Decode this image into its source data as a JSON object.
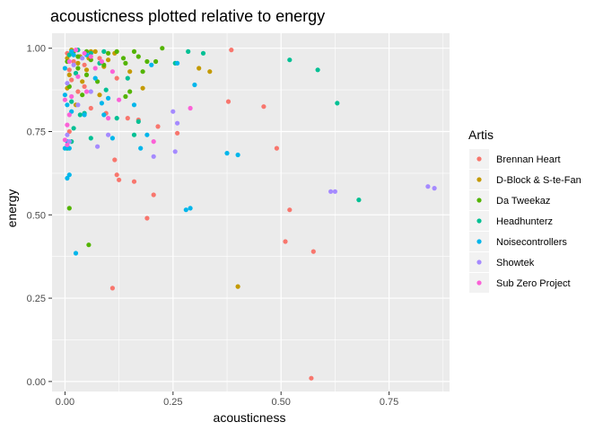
{
  "chart_data": {
    "type": "scatter",
    "title": "acousticness plotted relative to energy",
    "xlabel": "acousticness",
    "ylabel": "energy",
    "xlim": [
      -0.03,
      0.89
    ],
    "ylim": [
      -0.03,
      1.045
    ],
    "x_ticks": [
      0.0,
      0.25,
      0.5,
      0.75
    ],
    "x_tick_labels": [
      "0.00",
      "0.25",
      "0.50",
      "0.75"
    ],
    "y_ticks": [
      0.0,
      0.25,
      0.5,
      0.75,
      1.0
    ],
    "y_tick_labels": [
      "0.00",
      "0.25",
      "0.50",
      "0.75",
      "1.00"
    ],
    "grid": true,
    "legend": {
      "title": "Artis",
      "placement": "right",
      "entries": [
        {
          "name": "Brennan Heart",
          "color": "#F8766D"
        },
        {
          "name": "D-Block & S-te-Fan",
          "color": "#C49A00"
        },
        {
          "name": "Da Tweekaz",
          "color": "#53B400"
        },
        {
          "name": "Headhunterz",
          "color": "#00C094"
        },
        {
          "name": "Noisecontrollers",
          "color": "#00B6EB"
        },
        {
          "name": "Showtek",
          "color": "#A58AFF"
        },
        {
          "name": "Sub Zero Project",
          "color": "#FB61D7"
        }
      ]
    },
    "series": [
      {
        "name": "Brennan Heart",
        "points": [
          [
            0.385,
            0.995
          ],
          [
            0.378,
            0.84
          ],
          [
            0.46,
            0.825
          ],
          [
            0.49,
            0.7
          ],
          [
            0.52,
            0.515
          ],
          [
            0.51,
            0.42
          ],
          [
            0.575,
            0.39
          ],
          [
            0.57,
            0.01
          ],
          [
            0.11,
            0.28
          ],
          [
            0.19,
            0.49
          ],
          [
            0.205,
            0.56
          ],
          [
            0.16,
            0.6
          ],
          [
            0.125,
            0.605
          ],
          [
            0.12,
            0.62
          ],
          [
            0.115,
            0.665
          ],
          [
            0.26,
            0.745
          ],
          [
            0.215,
            0.765
          ],
          [
            0.17,
            0.785
          ],
          [
            0.145,
            0.79
          ],
          [
            0.095,
            0.805
          ],
          [
            0.06,
            0.82
          ],
          [
            0.03,
            0.87
          ],
          [
            0.01,
            0.935
          ],
          [
            0.02,
            0.96
          ],
          [
            0.005,
            0.985
          ],
          [
            0.045,
            0.95
          ],
          [
            0.08,
            0.97
          ],
          [
            0.12,
            0.91
          ],
          [
            0.01,
            0.75
          ],
          [
            0.045,
            0.885
          ],
          [
            0.015,
            0.905
          ]
        ]
      },
      {
        "name": "D-Block & S-te-Fan",
        "points": [
          [
            0.4,
            0.285
          ],
          [
            0.335,
            0.93
          ],
          [
            0.31,
            0.94
          ],
          [
            0.18,
            0.88
          ],
          [
            0.115,
            0.985
          ],
          [
            0.02,
            0.99
          ],
          [
            0.005,
            0.97
          ],
          [
            0.03,
            0.955
          ],
          [
            0.05,
            0.935
          ],
          [
            0.07,
            0.99
          ],
          [
            0.1,
            0.965
          ],
          [
            0.01,
            0.92
          ],
          [
            0.04,
            0.9
          ],
          [
            0.08,
            0.86
          ],
          [
            0.025,
            0.83
          ],
          [
            0.055,
            0.97
          ],
          [
            0.015,
            0.995
          ],
          [
            0.09,
            0.945
          ],
          [
            0.005,
            0.88
          ],
          [
            0.035,
            0.975
          ],
          [
            0.06,
            0.99
          ],
          [
            0.15,
            0.93
          ]
        ]
      },
      {
        "name": "Da Tweekaz",
        "points": [
          [
            0.01,
            0.52
          ],
          [
            0.055,
            0.41
          ],
          [
            0.225,
            1.0
          ],
          [
            0.16,
            0.99
          ],
          [
            0.19,
            0.96
          ],
          [
            0.14,
            0.955
          ],
          [
            0.21,
            0.96
          ],
          [
            0.18,
            0.93
          ],
          [
            0.15,
            0.87
          ],
          [
            0.14,
            0.855
          ],
          [
            0.1,
            0.985
          ],
          [
            0.05,
            0.99
          ],
          [
            0.02,
            0.99
          ],
          [
            0.09,
            0.95
          ],
          [
            0.03,
            0.94
          ],
          [
            0.05,
            0.92
          ],
          [
            0.075,
            0.9
          ],
          [
            0.01,
            0.885
          ],
          [
            0.12,
            0.99
          ],
          [
            0.03,
            0.975
          ],
          [
            0.06,
            0.965
          ],
          [
            0.17,
            0.975
          ],
          [
            0.005,
            0.96
          ],
          [
            0.04,
            0.86
          ],
          [
            0.135,
            0.97
          ]
        ]
      },
      {
        "name": "Headhunterz",
        "points": [
          [
            0.52,
            0.965
          ],
          [
            0.585,
            0.935
          ],
          [
            0.63,
            0.835
          ],
          [
            0.68,
            0.545
          ],
          [
            0.285,
            0.99
          ],
          [
            0.255,
            0.955
          ],
          [
            0.32,
            0.985
          ],
          [
            0.17,
            0.78
          ],
          [
            0.12,
            0.79
          ],
          [
            0.16,
            0.74
          ],
          [
            0.02,
            0.76
          ],
          [
            0.015,
            0.72
          ],
          [
            0.06,
            0.73
          ],
          [
            0.045,
            0.805
          ],
          [
            0.095,
            0.875
          ],
          [
            0.145,
            0.91
          ],
          [
            0.01,
            0.98
          ],
          [
            0.03,
            0.995
          ],
          [
            0.06,
            0.985
          ],
          [
            0.08,
            0.955
          ],
          [
            0.015,
            0.84
          ],
          [
            0.035,
            0.8
          ],
          [
            0.09,
            0.99
          ],
          [
            0.005,
            0.7
          ],
          [
            0.025,
            0.925
          ]
        ]
      },
      {
        "name": "Noisecontrollers",
        "points": [
          [
            0.025,
            0.385
          ],
          [
            0.28,
            0.515
          ],
          [
            0.29,
            0.52
          ],
          [
            0.375,
            0.685
          ],
          [
            0.4,
            0.68
          ],
          [
            0.005,
            0.61
          ],
          [
            0.01,
            0.62
          ],
          [
            0.005,
            0.72
          ],
          [
            0.0,
            0.7
          ],
          [
            0.01,
            0.7
          ],
          [
            0.19,
            0.74
          ],
          [
            0.175,
            0.7
          ],
          [
            0.11,
            0.73
          ],
          [
            0.085,
            0.835
          ],
          [
            0.045,
            0.8
          ],
          [
            0.0,
            0.86
          ],
          [
            0.005,
            0.83
          ],
          [
            0.015,
            0.81
          ],
          [
            0.1,
            0.85
          ],
          [
            0.09,
            0.8
          ],
          [
            0.26,
            0.955
          ],
          [
            0.3,
            0.89
          ],
          [
            0.16,
            0.83
          ],
          [
            0.2,
            0.95
          ],
          [
            0.05,
            0.98
          ],
          [
            0.02,
            0.98
          ],
          [
            0.07,
            0.91
          ],
          [
            0.0,
            0.94
          ],
          [
            0.015,
            0.99
          ]
        ]
      },
      {
        "name": "Showtek",
        "points": [
          [
            0.84,
            0.585
          ],
          [
            0.855,
            0.58
          ],
          [
            0.615,
            0.57
          ],
          [
            0.625,
            0.57
          ],
          [
            0.255,
            0.69
          ],
          [
            0.205,
            0.675
          ],
          [
            0.25,
            0.81
          ],
          [
            0.26,
            0.775
          ],
          [
            0.1,
            0.74
          ],
          [
            0.075,
            0.705
          ],
          [
            0.01,
            0.72
          ],
          [
            0.005,
            0.74
          ],
          [
            0.03,
            0.83
          ],
          [
            0.06,
            0.87
          ],
          [
            0.02,
            0.95
          ],
          [
            0.04,
            0.97
          ],
          [
            0.005,
            0.895
          ]
        ]
      },
      {
        "name": "Sub Zero Project",
        "points": [
          [
            0.29,
            0.82
          ],
          [
            0.205,
            0.72
          ],
          [
            0.1,
            0.79
          ],
          [
            0.125,
            0.845
          ],
          [
            0.01,
            0.8
          ],
          [
            0.005,
            0.77
          ],
          [
            0.0,
            0.725
          ],
          [
            0.005,
            0.71
          ],
          [
            0.025,
            0.995
          ],
          [
            0.045,
            0.985
          ],
          [
            0.06,
            0.975
          ],
          [
            0.085,
            0.96
          ],
          [
            0.07,
            0.94
          ],
          [
            0.01,
            0.96
          ],
          [
            0.03,
            0.915
          ],
          [
            0.05,
            0.87
          ],
          [
            0.015,
            0.855
          ],
          [
            0.11,
            0.93
          ],
          [
            0.0,
            0.845
          ]
        ]
      }
    ]
  }
}
